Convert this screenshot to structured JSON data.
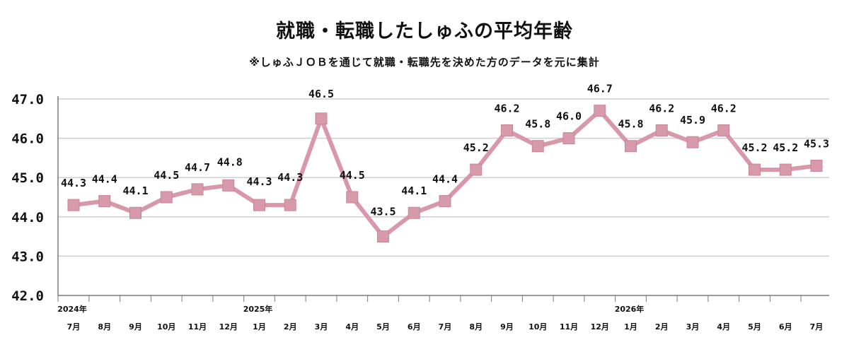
{
  "title": "就職・転職したしゅふの平均年齢",
  "subtitle": "※しゅふＪＯＢを通じて就職・転職先を決めた方のデータを元に集計",
  "chart_data": {
    "type": "line",
    "title": "就職・転職したしゅふの平均年齢",
    "subtitle": "※しゅふＪＯＢを通じて就職・転職先を決めた方のデータを元に集計",
    "categories": [
      "7月",
      "8月",
      "9月",
      "10月",
      "11月",
      "12月",
      "1月",
      "2月",
      "3月",
      "4月",
      "5月",
      "6月",
      "7月",
      "8月",
      "9月",
      "10月",
      "11月",
      "12月",
      "1月",
      "2月",
      "3月",
      "4月",
      "5月",
      "6月",
      "7月"
    ],
    "year_labels": [
      {
        "index": 0,
        "label": "2024年"
      },
      {
        "index": 6,
        "label": "2025年"
      },
      {
        "index": 18,
        "label": "2026年"
      }
    ],
    "values": [
      44.3,
      44.4,
      44.1,
      44.5,
      44.7,
      44.8,
      44.3,
      44.3,
      46.5,
      44.5,
      43.5,
      44.1,
      44.4,
      45.2,
      46.2,
      45.8,
      46.0,
      46.7,
      45.8,
      46.2,
      45.9,
      46.2,
      45.2,
      45.2,
      45.3
    ],
    "data_labels": [
      "44.3",
      "44.4",
      "44.1",
      "44.5",
      "44.7",
      "44.8",
      "44.3",
      "44.3",
      "46.5",
      "44.5",
      "43.5",
      "44.1",
      "44.4",
      "45.2",
      "46.2",
      "45.8",
      "46.0",
      "46.7",
      "45.8",
      "46.2",
      "45.9",
      "46.2",
      "45.2",
      "45.2",
      "45.3"
    ],
    "yticks": [
      "42.0",
      "43.0",
      "44.0",
      "45.0",
      "46.0",
      "47.0"
    ],
    "ylim": [
      42,
      47
    ],
    "grid": true,
    "line_color": "#d997aa",
    "marker_color": "#d69aab"
  }
}
